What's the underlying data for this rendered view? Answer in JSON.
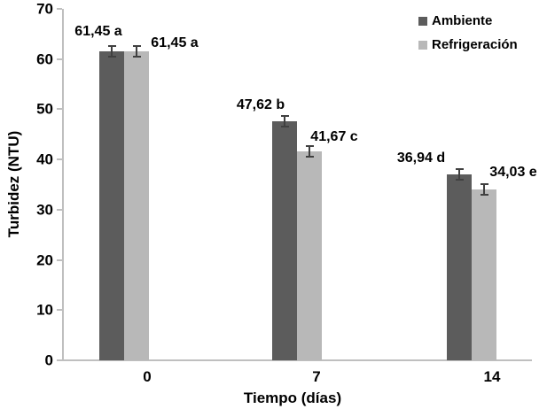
{
  "chart_data": {
    "type": "bar",
    "title": "",
    "categories": [
      "0",
      "7",
      "14"
    ],
    "series": [
      {
        "name": "Ambiente",
        "color": "#5C5C5C",
        "values": [
          61.45,
          47.62,
          36.94
        ],
        "point_labels": [
          "61,45 a",
          "47,62 b",
          "36,94 d"
        ]
      },
      {
        "name": "Refrigeración",
        "color": "#B8B8B8",
        "values": [
          61.45,
          41.67,
          34.03
        ],
        "point_labels": [
          "61,45 a",
          "41,67 c",
          "34,03 e"
        ]
      }
    ],
    "xlabel": "Tiempo (días)",
    "ylabel": "Turbidez (NTU)",
    "ylim": [
      0,
      70
    ],
    "yticks": [
      0,
      10,
      20,
      30,
      40,
      50,
      60,
      70
    ],
    "grid": false,
    "error_bars": true,
    "error_value_ntu": 1.0,
    "legend_position": "top-right",
    "colors": {
      "axis": "#BFBFBF",
      "error_bar": "#404040",
      "text": "#000000",
      "background": "#FFFFFF"
    }
  }
}
